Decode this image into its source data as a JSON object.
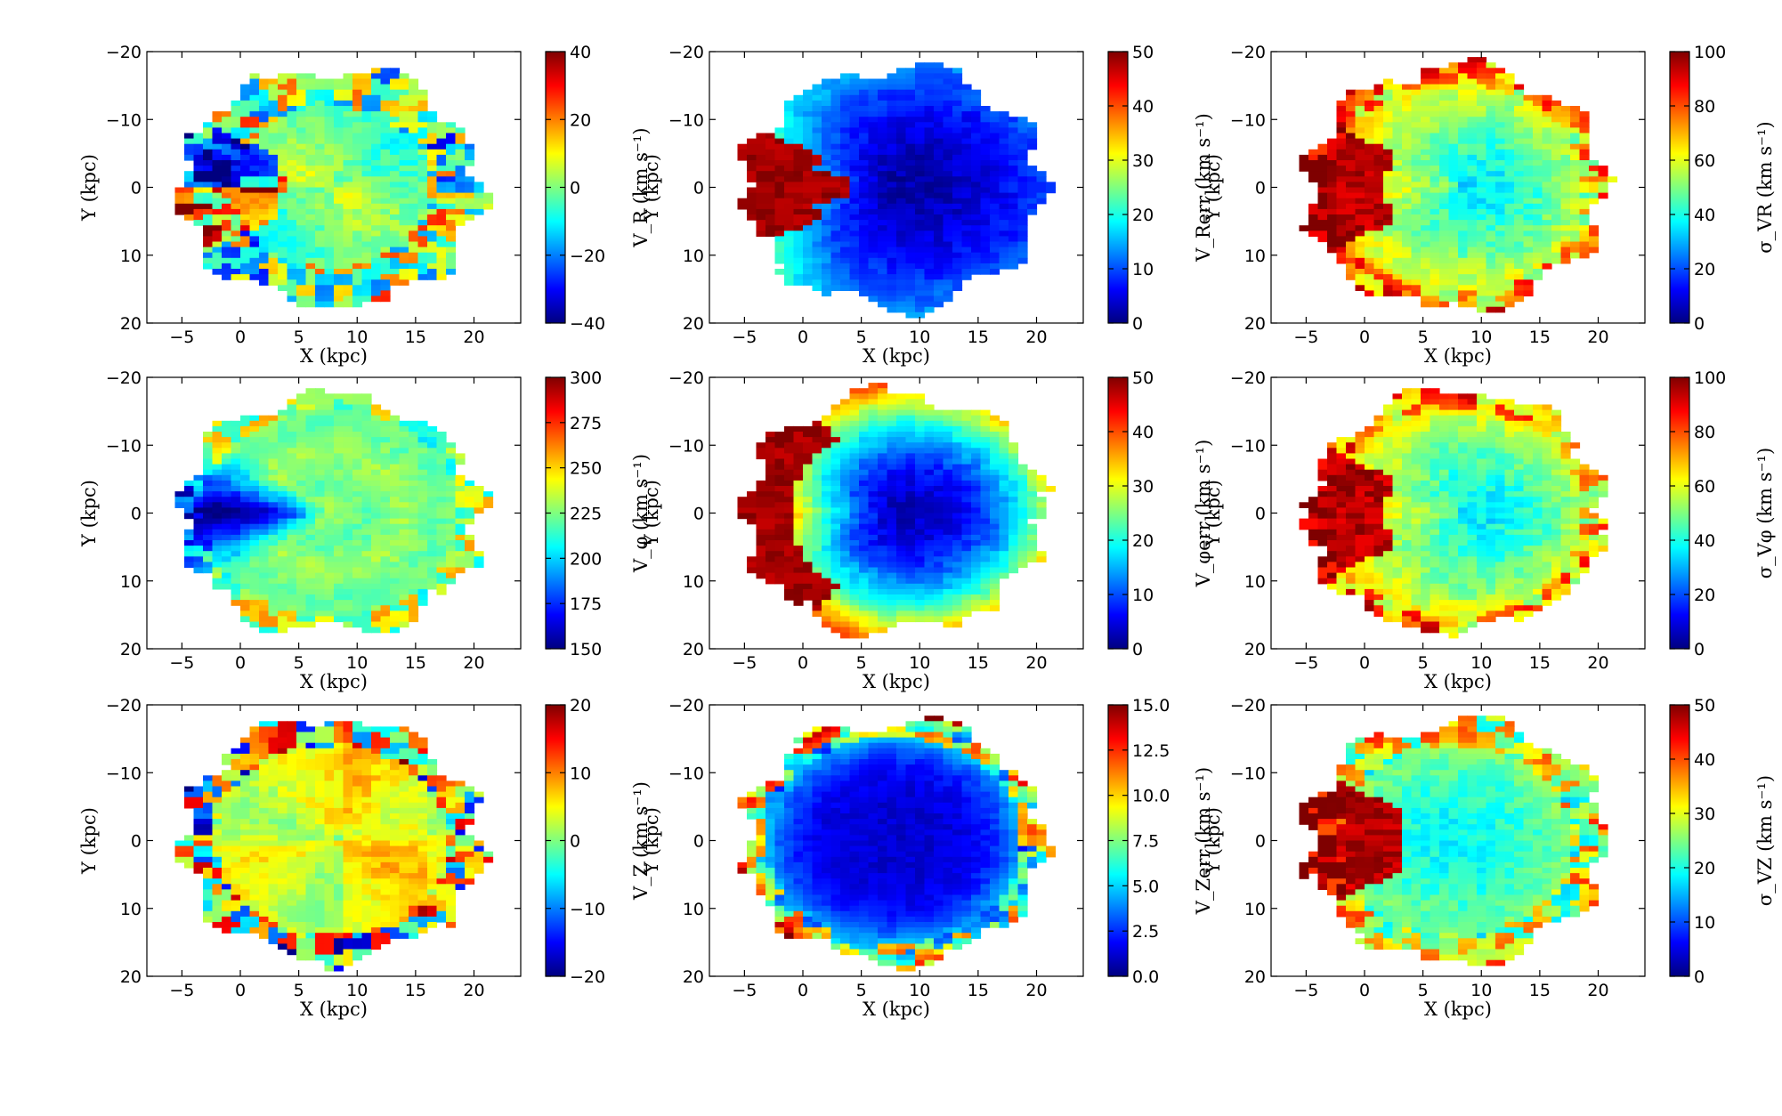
{
  "figure": {
    "type": "heatmap",
    "grid": "3x3",
    "colormap": "jet"
  },
  "colors": {
    "jet": [
      "#00007f",
      "#0000ff",
      "#007fff",
      "#00ffff",
      "#7fff7f",
      "#ffff00",
      "#ff7f00",
      "#ff0000",
      "#7f0000"
    ],
    "frame": "#000000",
    "background": "#ffffff"
  },
  "chart_data": [
    {
      "type": "heatmap",
      "id": "vr",
      "xlabel": "X (kpc)",
      "ylabel": "Y (kpc)",
      "xticks": [
        "−5",
        "0",
        "5",
        "10",
        "15",
        "20"
      ],
      "yticks": [
        "−20",
        "−10",
        "0",
        "10",
        "20"
      ],
      "xlim": [
        -8,
        24
      ],
      "ylim": [
        -20,
        20
      ],
      "colorbar": {
        "label": "V_R (km s⁻¹)",
        "range": [
          -40,
          40
        ],
        "ticks": [
          "40",
          "20",
          "0",
          "−20",
          "−40"
        ]
      },
      "pattern": "vr"
    },
    {
      "type": "heatmap",
      "id": "vrerr",
      "xlabel": "X (kpc)",
      "ylabel": "Y (kpc)",
      "xticks": [
        "−5",
        "0",
        "5",
        "10",
        "15",
        "20"
      ],
      "yticks": [
        "−20",
        "−10",
        "0",
        "10",
        "20"
      ],
      "xlim": [
        -8,
        24
      ],
      "ylim": [
        -20,
        20
      ],
      "colorbar": {
        "label": "V_Rerr (km s⁻¹)",
        "range": [
          0,
          50
        ],
        "ticks": [
          "50",
          "40",
          "30",
          "20",
          "10",
          "0"
        ]
      },
      "pattern": "vrerr"
    },
    {
      "type": "heatmap",
      "id": "sigvr",
      "xlabel": "X (kpc)",
      "ylabel": "Y (kpc)",
      "xticks": [
        "−5",
        "0",
        "5",
        "10",
        "15",
        "20"
      ],
      "yticks": [
        "−20",
        "−10",
        "0",
        "10",
        "20"
      ],
      "xlim": [
        -8,
        24
      ],
      "ylim": [
        -20,
        20
      ],
      "colorbar": {
        "label": "σ_VR (km s⁻¹)",
        "range": [
          0,
          100
        ],
        "ticks": [
          "100",
          "80",
          "60",
          "40",
          "20",
          "0"
        ]
      },
      "pattern": "sigma"
    },
    {
      "type": "heatmap",
      "id": "vphi",
      "xlabel": "X (kpc)",
      "ylabel": "Y (kpc)",
      "xticks": [
        "−5",
        "0",
        "5",
        "10",
        "15",
        "20"
      ],
      "yticks": [
        "−20",
        "−10",
        "0",
        "10",
        "20"
      ],
      "xlim": [
        -8,
        24
      ],
      "ylim": [
        -20,
        20
      ],
      "colorbar": {
        "label": "V_φ (km s⁻¹)",
        "range": [
          150,
          300
        ],
        "ticks": [
          "300",
          "275",
          "250",
          "225",
          "200",
          "175",
          "150"
        ]
      },
      "pattern": "vphi"
    },
    {
      "type": "heatmap",
      "id": "vphierr",
      "xlabel": "X (kpc)",
      "ylabel": "Y (kpc)",
      "xticks": [
        "−5",
        "0",
        "5",
        "10",
        "15",
        "20"
      ],
      "yticks": [
        "−20",
        "−10",
        "0",
        "10",
        "20"
      ],
      "xlim": [
        -8,
        24
      ],
      "ylim": [
        -20,
        20
      ],
      "colorbar": {
        "label": "V_φerr (km s⁻¹)",
        "range": [
          0,
          50
        ],
        "ticks": [
          "50",
          "40",
          "30",
          "20",
          "10",
          "0"
        ]
      },
      "pattern": "vphierr"
    },
    {
      "type": "heatmap",
      "id": "sigvphi",
      "xlabel": "X (kpc)",
      "ylabel": "Y (kpc)",
      "xticks": [
        "−5",
        "0",
        "5",
        "10",
        "15",
        "20"
      ],
      "yticks": [
        "−20",
        "−10",
        "0",
        "10",
        "20"
      ],
      "xlim": [
        -8,
        24
      ],
      "ylim": [
        -20,
        20
      ],
      "colorbar": {
        "label": "σ_Vφ (km s⁻¹)",
        "range": [
          0,
          100
        ],
        "ticks": [
          "100",
          "80",
          "60",
          "40",
          "20",
          "0"
        ]
      },
      "pattern": "sigma"
    },
    {
      "type": "heatmap",
      "id": "vz",
      "xlabel": "X (kpc)",
      "ylabel": "Y (kpc)",
      "xticks": [
        "−5",
        "0",
        "5",
        "10",
        "15",
        "20"
      ],
      "yticks": [
        "−20",
        "−10",
        "0",
        "10",
        "20"
      ],
      "xlim": [
        -8,
        24
      ],
      "ylim": [
        -20,
        20
      ],
      "colorbar": {
        "label": "V_Z (km s⁻¹)",
        "range": [
          -20,
          20
        ],
        "ticks": [
          "20",
          "10",
          "0",
          "−10",
          "−20"
        ]
      },
      "pattern": "vz"
    },
    {
      "type": "heatmap",
      "id": "vzerr",
      "xlabel": "X (kpc)",
      "ylabel": "Y (kpc)",
      "xticks": [
        "−5",
        "0",
        "5",
        "10",
        "15",
        "20"
      ],
      "yticks": [
        "−20",
        "−10",
        "0",
        "10",
        "20"
      ],
      "xlim": [
        -8,
        24
      ],
      "ylim": [
        -20,
        20
      ],
      "colorbar": {
        "label": "V_Zerr (km s⁻¹)",
        "range": [
          0,
          15
        ],
        "ticks": [
          "15.0",
          "12.5",
          "10.0",
          "7.5",
          "5.0",
          "2.5",
          "0.0"
        ]
      },
      "pattern": "vzerr"
    },
    {
      "type": "heatmap",
      "id": "sigvz",
      "xlabel": "X (kpc)",
      "ylabel": "Y (kpc)",
      "xticks": [
        "−5",
        "0",
        "5",
        "10",
        "15",
        "20"
      ],
      "yticks": [
        "−20",
        "−10",
        "0",
        "10",
        "20"
      ],
      "xlim": [
        -8,
        24
      ],
      "ylim": [
        -20,
        20
      ],
      "colorbar": {
        "label": "σ_VZ (km s⁻¹)",
        "range": [
          0,
          50
        ],
        "ticks": [
          "50",
          "40",
          "30",
          "20",
          "10",
          "0"
        ]
      },
      "pattern": "sigmaz"
    }
  ]
}
